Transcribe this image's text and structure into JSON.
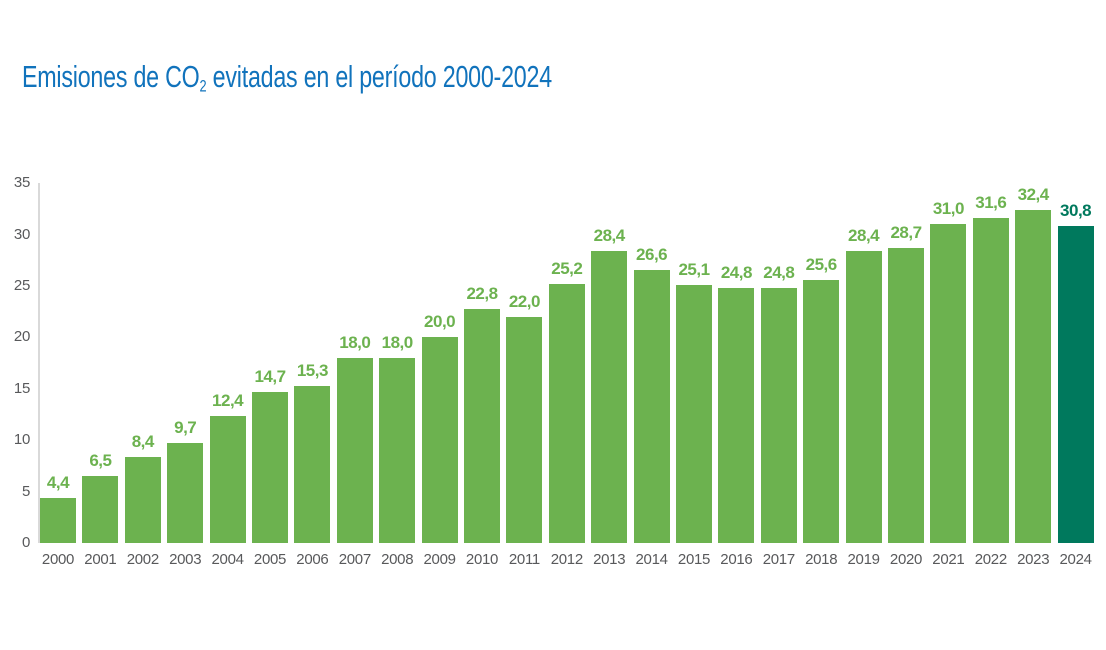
{
  "title": {
    "prefix": "Emisiones de CO",
    "subscript": "2",
    "suffix": " evitadas en el período 2000-2024"
  },
  "colors": {
    "title": "#1173BC",
    "bar": "#6CB24F",
    "bar_highlight": "#00795D",
    "axis_text": "#58595B",
    "axis_line": "#D9D9D9"
  },
  "chart_data": {
    "type": "bar",
    "title": "Emisiones de CO2 evitadas en el período 2000-2024",
    "categories": [
      "2000",
      "2001",
      "2002",
      "2003",
      "2004",
      "2005",
      "2006",
      "2007",
      "2008",
      "2009",
      "2010",
      "2011",
      "2012",
      "2013",
      "2014",
      "2015",
      "2016",
      "2017",
      "2018",
      "2019",
      "2020",
      "2021",
      "2022",
      "2023",
      "2024"
    ],
    "values": [
      4.4,
      6.5,
      8.4,
      9.7,
      12.4,
      14.7,
      15.3,
      18.0,
      18.0,
      20.0,
      22.8,
      22.0,
      25.2,
      28.4,
      26.6,
      25.1,
      24.8,
      24.8,
      25.6,
      28.4,
      28.7,
      31.0,
      31.6,
      32.4,
      30.8
    ],
    "value_labels": [
      "4,4",
      "6,5",
      "8,4",
      "9,7",
      "12,4",
      "14,7",
      "15,3",
      "18,0",
      "18,0",
      "20,0",
      "22,8",
      "22,0",
      "25,2",
      "28,4",
      "26,6",
      "25,1",
      "24,8",
      "24,8",
      "25,6",
      "28,4",
      "28,7",
      "31,0",
      "31,6",
      "32,4",
      "30,8"
    ],
    "y_ticks": [
      0,
      5,
      10,
      15,
      20,
      25,
      30,
      35
    ],
    "ylim": [
      0,
      35
    ],
    "xlabel": "",
    "ylabel": "",
    "grid": false,
    "legend": false,
    "decimal_separator": ",",
    "highlight_category": "2024"
  }
}
